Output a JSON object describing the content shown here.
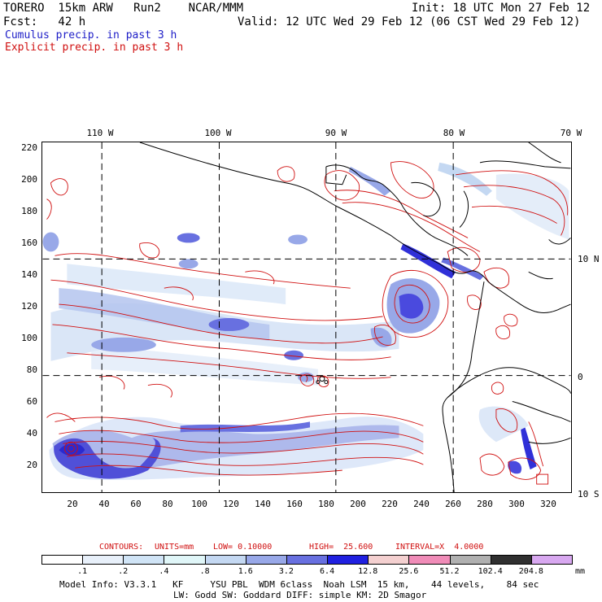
{
  "header": {
    "line1_left": "TORERO  15km ARW   Run2    NCAR/MMM",
    "line1_right": "Init: 18 UTC Mon 27 Feb 12",
    "line2_left": "Fcst:   42 h",
    "line2_right": "Valid: 12 UTC Wed 29 Feb 12 (06 CST Wed 29 Feb 12)",
    "line3": "Cumulus precip. in past 3 h",
    "line4": "Explicit precip. in past 3 h"
  },
  "map": {
    "lon_labels": [
      "110 W",
      "100 W",
      "90 W",
      "80 W",
      "70 W"
    ],
    "lat_labels": [
      "10 N",
      "0",
      "10 S"
    ],
    "y_ticks": [
      "220",
      "200",
      "180",
      "160",
      "140",
      "120",
      "100",
      "80",
      "60",
      "40",
      "20"
    ],
    "x_ticks": [
      "20",
      "40",
      "60",
      "80",
      "100",
      "120",
      "140",
      "160",
      "180",
      "200",
      "220",
      "240",
      "260",
      "280",
      "300",
      "320"
    ]
  },
  "contours_info": {
    "label": "CONTOURS:",
    "units": "UNITS=mm",
    "low": "LOW= 0.10000",
    "high": "HIGH=  25.600",
    "interval": "INTERVAL=X  4.0000"
  },
  "colorbar": {
    "unit": "mm",
    "labels": [
      ".1",
      ".2",
      ".4",
      ".8",
      "1.6",
      "3.2",
      "6.4",
      "12.8",
      "25.6",
      "51.2",
      "102.4",
      "204.8"
    ],
    "colors": [
      "#ffffff",
      "#e8f0fa",
      "#d0e4f6",
      "#e0f6f8",
      "#c4d8f2",
      "#98a8e8",
      "#6870e0",
      "#2020e0",
      "#f4d0d0",
      "#f08cb8",
      "#b0b0b0",
      "#303030",
      "#d8a8f0"
    ]
  },
  "footer": {
    "line1": "Model Info: V3.3.1   KF     YSU PBL  WDM 6class  Noah LSM  15 km,    44 levels,    84 sec",
    "line2": "LW: Godd SW: Goddard DIFF: simple KM: 2D Smagor"
  }
}
